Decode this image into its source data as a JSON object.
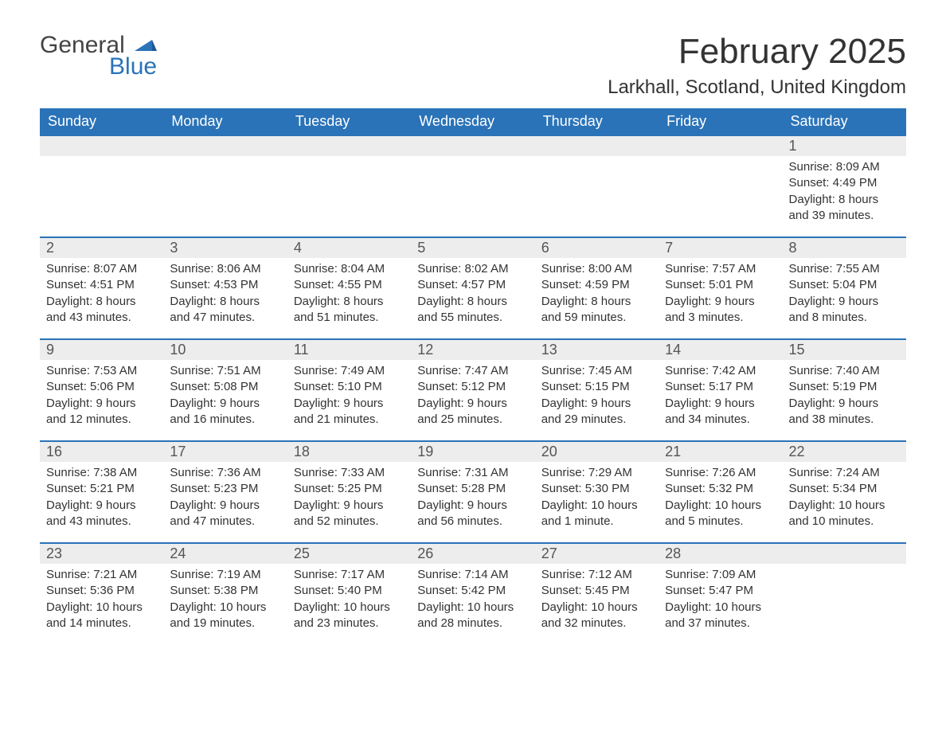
{
  "logo": {
    "general": "General",
    "blue": "Blue",
    "accent_color": "#2a73b8"
  },
  "title": {
    "month": "February 2025",
    "location": "Larkhall, Scotland, United Kingdom"
  },
  "colors": {
    "header_bg": "#2a73b8",
    "header_text": "#ffffff",
    "row_stripe": "#ededed",
    "body_text": "#333333",
    "page_bg": "#ffffff"
  },
  "weekdays": [
    "Sunday",
    "Monday",
    "Tuesday",
    "Wednesday",
    "Thursday",
    "Friday",
    "Saturday"
  ],
  "weeks": [
    [
      null,
      null,
      null,
      null,
      null,
      null,
      {
        "n": "1",
        "sunrise": "Sunrise: 8:09 AM",
        "sunset": "Sunset: 4:49 PM",
        "day1": "Daylight: 8 hours",
        "day2": "and 39 minutes."
      }
    ],
    [
      {
        "n": "2",
        "sunrise": "Sunrise: 8:07 AM",
        "sunset": "Sunset: 4:51 PM",
        "day1": "Daylight: 8 hours",
        "day2": "and 43 minutes."
      },
      {
        "n": "3",
        "sunrise": "Sunrise: 8:06 AM",
        "sunset": "Sunset: 4:53 PM",
        "day1": "Daylight: 8 hours",
        "day2": "and 47 minutes."
      },
      {
        "n": "4",
        "sunrise": "Sunrise: 8:04 AM",
        "sunset": "Sunset: 4:55 PM",
        "day1": "Daylight: 8 hours",
        "day2": "and 51 minutes."
      },
      {
        "n": "5",
        "sunrise": "Sunrise: 8:02 AM",
        "sunset": "Sunset: 4:57 PM",
        "day1": "Daylight: 8 hours",
        "day2": "and 55 minutes."
      },
      {
        "n": "6",
        "sunrise": "Sunrise: 8:00 AM",
        "sunset": "Sunset: 4:59 PM",
        "day1": "Daylight: 8 hours",
        "day2": "and 59 minutes."
      },
      {
        "n": "7",
        "sunrise": "Sunrise: 7:57 AM",
        "sunset": "Sunset: 5:01 PM",
        "day1": "Daylight: 9 hours",
        "day2": "and 3 minutes."
      },
      {
        "n": "8",
        "sunrise": "Sunrise: 7:55 AM",
        "sunset": "Sunset: 5:04 PM",
        "day1": "Daylight: 9 hours",
        "day2": "and 8 minutes."
      }
    ],
    [
      {
        "n": "9",
        "sunrise": "Sunrise: 7:53 AM",
        "sunset": "Sunset: 5:06 PM",
        "day1": "Daylight: 9 hours",
        "day2": "and 12 minutes."
      },
      {
        "n": "10",
        "sunrise": "Sunrise: 7:51 AM",
        "sunset": "Sunset: 5:08 PM",
        "day1": "Daylight: 9 hours",
        "day2": "and 16 minutes."
      },
      {
        "n": "11",
        "sunrise": "Sunrise: 7:49 AM",
        "sunset": "Sunset: 5:10 PM",
        "day1": "Daylight: 9 hours",
        "day2": "and 21 minutes."
      },
      {
        "n": "12",
        "sunrise": "Sunrise: 7:47 AM",
        "sunset": "Sunset: 5:12 PM",
        "day1": "Daylight: 9 hours",
        "day2": "and 25 minutes."
      },
      {
        "n": "13",
        "sunrise": "Sunrise: 7:45 AM",
        "sunset": "Sunset: 5:15 PM",
        "day1": "Daylight: 9 hours",
        "day2": "and 29 minutes."
      },
      {
        "n": "14",
        "sunrise": "Sunrise: 7:42 AM",
        "sunset": "Sunset: 5:17 PM",
        "day1": "Daylight: 9 hours",
        "day2": "and 34 minutes."
      },
      {
        "n": "15",
        "sunrise": "Sunrise: 7:40 AM",
        "sunset": "Sunset: 5:19 PM",
        "day1": "Daylight: 9 hours",
        "day2": "and 38 minutes."
      }
    ],
    [
      {
        "n": "16",
        "sunrise": "Sunrise: 7:38 AM",
        "sunset": "Sunset: 5:21 PM",
        "day1": "Daylight: 9 hours",
        "day2": "and 43 minutes."
      },
      {
        "n": "17",
        "sunrise": "Sunrise: 7:36 AM",
        "sunset": "Sunset: 5:23 PM",
        "day1": "Daylight: 9 hours",
        "day2": "and 47 minutes."
      },
      {
        "n": "18",
        "sunrise": "Sunrise: 7:33 AM",
        "sunset": "Sunset: 5:25 PM",
        "day1": "Daylight: 9 hours",
        "day2": "and 52 minutes."
      },
      {
        "n": "19",
        "sunrise": "Sunrise: 7:31 AM",
        "sunset": "Sunset: 5:28 PM",
        "day1": "Daylight: 9 hours",
        "day2": "and 56 minutes."
      },
      {
        "n": "20",
        "sunrise": "Sunrise: 7:29 AM",
        "sunset": "Sunset: 5:30 PM",
        "day1": "Daylight: 10 hours",
        "day2": "and 1 minute."
      },
      {
        "n": "21",
        "sunrise": "Sunrise: 7:26 AM",
        "sunset": "Sunset: 5:32 PM",
        "day1": "Daylight: 10 hours",
        "day2": "and 5 minutes."
      },
      {
        "n": "22",
        "sunrise": "Sunrise: 7:24 AM",
        "sunset": "Sunset: 5:34 PM",
        "day1": "Daylight: 10 hours",
        "day2": "and 10 minutes."
      }
    ],
    [
      {
        "n": "23",
        "sunrise": "Sunrise: 7:21 AM",
        "sunset": "Sunset: 5:36 PM",
        "day1": "Daylight: 10 hours",
        "day2": "and 14 minutes."
      },
      {
        "n": "24",
        "sunrise": "Sunrise: 7:19 AM",
        "sunset": "Sunset: 5:38 PM",
        "day1": "Daylight: 10 hours",
        "day2": "and 19 minutes."
      },
      {
        "n": "25",
        "sunrise": "Sunrise: 7:17 AM",
        "sunset": "Sunset: 5:40 PM",
        "day1": "Daylight: 10 hours",
        "day2": "and 23 minutes."
      },
      {
        "n": "26",
        "sunrise": "Sunrise: 7:14 AM",
        "sunset": "Sunset: 5:42 PM",
        "day1": "Daylight: 10 hours",
        "day2": "and 28 minutes."
      },
      {
        "n": "27",
        "sunrise": "Sunrise: 7:12 AM",
        "sunset": "Sunset: 5:45 PM",
        "day1": "Daylight: 10 hours",
        "day2": "and 32 minutes."
      },
      {
        "n": "28",
        "sunrise": "Sunrise: 7:09 AM",
        "sunset": "Sunset: 5:47 PM",
        "day1": "Daylight: 10 hours",
        "day2": "and 37 minutes."
      },
      null
    ]
  ]
}
